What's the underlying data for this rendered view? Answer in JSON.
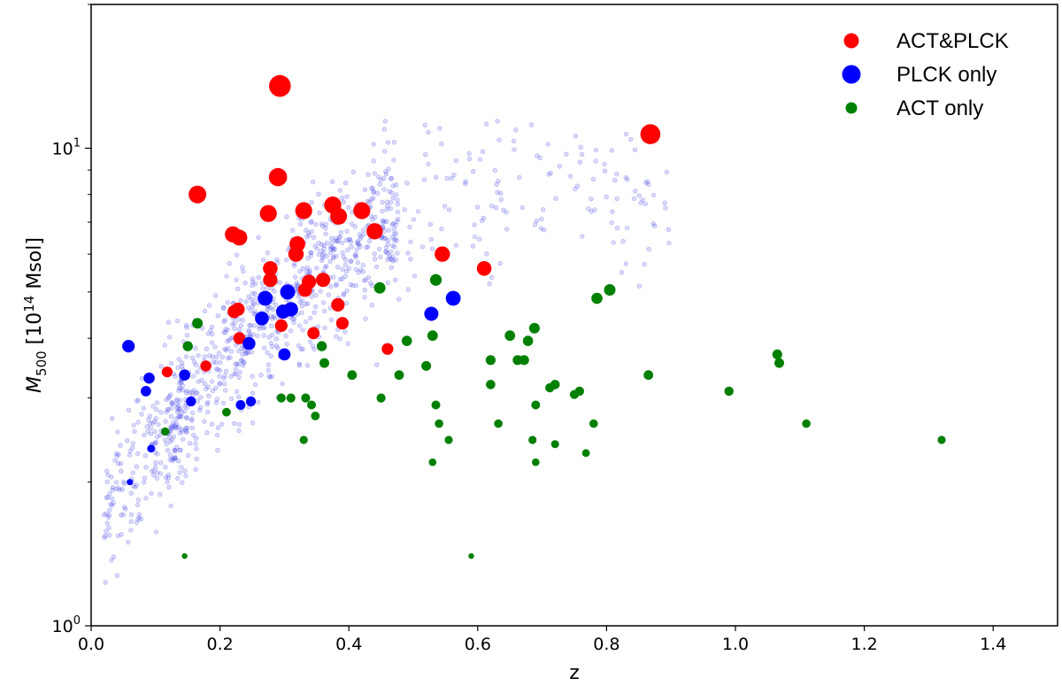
{
  "chart_data": {
    "type": "scatter",
    "title": "",
    "xlabel": "z",
    "ylabel_parts": {
      "symbol": "M",
      "subscript": "500",
      "unit_prefix": " [10",
      "unit_exp": "14",
      "unit_suffix": " Msol]"
    },
    "xlim": [
      0.0,
      1.5
    ],
    "ylim": [
      1,
      20
    ],
    "yscale": "log",
    "x_ticks": [
      "0.0",
      "0.2",
      "0.4",
      "0.6",
      "0.8",
      "1.0",
      "1.2",
      "1.4"
    ],
    "y_ticks": [
      {
        "base": "10",
        "exp": "0",
        "value": 1
      },
      {
        "base": "10",
        "exp": "1",
        "value": 10
      }
    ],
    "grid": false,
    "legend_position": "top-right",
    "series": [
      {
        "name": "ACT&PLCK",
        "color": "#ff0000",
        "points": [
          [
            0.293,
            13.5
          ],
          [
            0.868,
            10.7
          ],
          [
            0.165,
            8.0
          ],
          [
            0.29,
            8.7
          ],
          [
            0.275,
            7.3
          ],
          [
            0.33,
            7.4
          ],
          [
            0.375,
            7.6
          ],
          [
            0.384,
            7.2
          ],
          [
            0.42,
            7.4
          ],
          [
            0.22,
            6.6
          ],
          [
            0.23,
            6.5
          ],
          [
            0.44,
            6.7
          ],
          [
            0.32,
            6.3
          ],
          [
            0.318,
            6.0
          ],
          [
            0.545,
            6.0
          ],
          [
            0.61,
            5.6
          ],
          [
            0.278,
            5.6
          ],
          [
            0.278,
            5.3
          ],
          [
            0.36,
            5.3
          ],
          [
            0.338,
            5.25
          ],
          [
            0.332,
            5.05
          ],
          [
            0.383,
            4.7
          ],
          [
            0.228,
            4.6
          ],
          [
            0.222,
            4.55
          ],
          [
            0.39,
            4.3
          ],
          [
            0.295,
            4.25
          ],
          [
            0.345,
            4.1
          ],
          [
            0.23,
            4.0
          ],
          [
            0.46,
            3.8
          ],
          [
            0.178,
            3.5
          ],
          [
            0.118,
            3.4
          ]
        ]
      },
      {
        "name": "PLCK only",
        "color": "#0000ff",
        "points": [
          [
            0.058,
            3.85
          ],
          [
            0.09,
            3.3
          ],
          [
            0.145,
            3.35
          ],
          [
            0.085,
            3.1
          ],
          [
            0.155,
            2.95
          ],
          [
            0.248,
            2.95
          ],
          [
            0.232,
            2.9
          ],
          [
            0.093,
            2.35
          ],
          [
            0.06,
            2.0
          ],
          [
            0.27,
            4.85
          ],
          [
            0.305,
            5.0
          ],
          [
            0.298,
            4.55
          ],
          [
            0.31,
            4.6
          ],
          [
            0.265,
            4.4
          ],
          [
            0.245,
            3.9
          ],
          [
            0.3,
            3.7
          ],
          [
            0.528,
            4.5
          ],
          [
            0.562,
            4.85
          ]
        ]
      },
      {
        "name": "ACT only",
        "color": "#008000",
        "points": [
          [
            0.165,
            4.3
          ],
          [
            0.15,
            3.85
          ],
          [
            0.448,
            5.1
          ],
          [
            0.535,
            5.3
          ],
          [
            0.358,
            3.85
          ],
          [
            0.362,
            3.55
          ],
          [
            0.405,
            3.35
          ],
          [
            0.478,
            3.35
          ],
          [
            0.295,
            3.0
          ],
          [
            0.31,
            3.0
          ],
          [
            0.333,
            3.0
          ],
          [
            0.342,
            2.9
          ],
          [
            0.348,
            2.75
          ],
          [
            0.21,
            2.8
          ],
          [
            0.115,
            2.55
          ],
          [
            0.33,
            2.45
          ],
          [
            0.45,
            3.0
          ],
          [
            0.49,
            3.95
          ],
          [
            0.53,
            4.05
          ],
          [
            0.52,
            3.5
          ],
          [
            0.535,
            2.9
          ],
          [
            0.54,
            2.65
          ],
          [
            0.555,
            2.45
          ],
          [
            0.53,
            2.2
          ],
          [
            0.59,
            1.4
          ],
          [
            0.65,
            4.05
          ],
          [
            0.688,
            4.2
          ],
          [
            0.678,
            3.95
          ],
          [
            0.62,
            3.6
          ],
          [
            0.662,
            3.6
          ],
          [
            0.672,
            3.6
          ],
          [
            0.62,
            3.2
          ],
          [
            0.632,
            2.65
          ],
          [
            0.712,
            3.15
          ],
          [
            0.72,
            3.2
          ],
          [
            0.75,
            3.05
          ],
          [
            0.758,
            3.1
          ],
          [
            0.69,
            2.9
          ],
          [
            0.685,
            2.45
          ],
          [
            0.72,
            2.4
          ],
          [
            0.69,
            2.2
          ],
          [
            0.768,
            2.3
          ],
          [
            0.78,
            2.65
          ],
          [
            0.785,
            4.85
          ],
          [
            0.805,
            5.05
          ],
          [
            0.865,
            3.35
          ],
          [
            0.99,
            3.1
          ],
          [
            1.065,
            3.7
          ],
          [
            1.068,
            3.55
          ],
          [
            1.11,
            2.65
          ],
          [
            1.32,
            2.45
          ],
          [
            0.145,
            1.4
          ]
        ]
      }
    ]
  }
}
